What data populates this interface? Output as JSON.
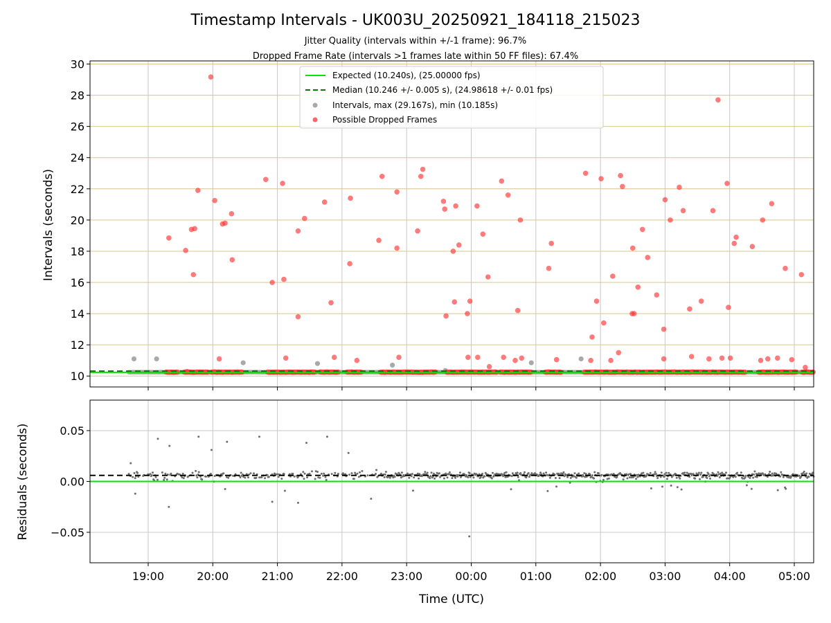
{
  "title": "Timestamp Intervals - UK003U_20250921_184118_215023",
  "subtitle1": "Jitter Quality (intervals within +/-1 frame): 96.7%",
  "subtitle2": "Dropped Frame Rate (intervals >1 frames late within 50 FF files): 67.4%",
  "colors": {
    "expected": "#00e600",
    "median": "#007a00",
    "intervals": "#9a9a9a",
    "dropped": "#ff3333",
    "residuals": "#6e6e6e",
    "hgrid_top": "#d9c48a",
    "grid": "#c8c8c8"
  },
  "chart_data": [
    {
      "type": "scatter",
      "panel": "intervals",
      "ylabel": "Intervals (seconds)",
      "xlabel": "",
      "xlim_hours": [
        18.1,
        29.3
      ],
      "ylim": [
        9.3,
        30.2
      ],
      "yticks": [
        10,
        12,
        14,
        16,
        18,
        20,
        22,
        24,
        26,
        28,
        30
      ],
      "ytick_labels": [
        "10",
        "12",
        "14",
        "16",
        "18",
        "20",
        "22",
        "24",
        "26",
        "28",
        "30"
      ],
      "expected_value": 10.24,
      "median_value": 10.246,
      "series_start_hours": 18.7,
      "legend": [
        {
          "kind": "line-solid",
          "label": "Expected (10.240s), (25.00000 fps)"
        },
        {
          "kind": "line-dashed",
          "label": "Median (10.246 +/- 0.005 s), (24.98618 +/- 0.01 fps)"
        },
        {
          "kind": "marker-gray",
          "label": "Intervals, max (29.167s), min (10.185s)"
        },
        {
          "kind": "marker-red",
          "label": "Possible Dropped Frames"
        }
      ],
      "gray_points": [
        {
          "x": 18.78,
          "y": 11.1
        },
        {
          "x": 19.13,
          "y": 11.1
        },
        {
          "x": 20.47,
          "y": 10.85
        },
        {
          "x": 21.62,
          "y": 10.8
        },
        {
          "x": 22.78,
          "y": 10.7
        },
        {
          "x": 24.93,
          "y": 10.85
        },
        {
          "x": 25.7,
          "y": 11.1
        },
        {
          "x": 19.6,
          "y": 10.3
        },
        {
          "x": 23.6,
          "y": 10.35
        }
      ],
      "dropped_points": [
        {
          "x": 19.32,
          "y": 18.85
        },
        {
          "x": 19.58,
          "y": 18.05
        },
        {
          "x": 19.67,
          "y": 19.4
        },
        {
          "x": 19.72,
          "y": 19.45
        },
        {
          "x": 19.7,
          "y": 16.5
        },
        {
          "x": 19.77,
          "y": 21.9
        },
        {
          "x": 19.97,
          "y": 29.17
        },
        {
          "x": 20.03,
          "y": 21.25
        },
        {
          "x": 20.1,
          "y": 11.1
        },
        {
          "x": 20.15,
          "y": 19.75
        },
        {
          "x": 20.19,
          "y": 19.8
        },
        {
          "x": 20.29,
          "y": 20.4
        },
        {
          "x": 20.3,
          "y": 17.45
        },
        {
          "x": 20.82,
          "y": 22.6
        },
        {
          "x": 20.92,
          "y": 16.0
        },
        {
          "x": 21.08,
          "y": 22.35
        },
        {
          "x": 21.1,
          "y": 16.2
        },
        {
          "x": 21.13,
          "y": 11.15
        },
        {
          "x": 21.32,
          "y": 19.3
        },
        {
          "x": 21.32,
          "y": 13.8
        },
        {
          "x": 21.42,
          "y": 20.1
        },
        {
          "x": 21.73,
          "y": 21.15
        },
        {
          "x": 21.83,
          "y": 14.7
        },
        {
          "x": 21.88,
          "y": 11.2
        },
        {
          "x": 22.12,
          "y": 17.2
        },
        {
          "x": 22.13,
          "y": 21.4
        },
        {
          "x": 22.23,
          "y": 11.0
        },
        {
          "x": 22.57,
          "y": 18.7
        },
        {
          "x": 22.62,
          "y": 22.8
        },
        {
          "x": 22.85,
          "y": 21.8
        },
        {
          "x": 22.85,
          "y": 18.2
        },
        {
          "x": 22.88,
          "y": 11.2
        },
        {
          "x": 23.17,
          "y": 19.3
        },
        {
          "x": 23.22,
          "y": 22.8
        },
        {
          "x": 23.25,
          "y": 23.25
        },
        {
          "x": 23.57,
          "y": 21.2
        },
        {
          "x": 23.59,
          "y": 20.7
        },
        {
          "x": 23.61,
          "y": 13.85
        },
        {
          "x": 23.72,
          "y": 18.0
        },
        {
          "x": 23.74,
          "y": 14.75
        },
        {
          "x": 23.76,
          "y": 20.9
        },
        {
          "x": 23.81,
          "y": 18.4
        },
        {
          "x": 23.94,
          "y": 14.0
        },
        {
          "x": 23.95,
          "y": 11.2
        },
        {
          "x": 23.98,
          "y": 14.8
        },
        {
          "x": 24.09,
          "y": 20.9
        },
        {
          "x": 24.1,
          "y": 11.2
        },
        {
          "x": 24.18,
          "y": 19.1
        },
        {
          "x": 24.26,
          "y": 16.35
        },
        {
          "x": 24.28,
          "y": 10.6
        },
        {
          "x": 24.47,
          "y": 22.5
        },
        {
          "x": 24.5,
          "y": 11.2
        },
        {
          "x": 24.57,
          "y": 21.6
        },
        {
          "x": 24.68,
          "y": 11.0
        },
        {
          "x": 24.72,
          "y": 14.2
        },
        {
          "x": 24.76,
          "y": 20.0
        },
        {
          "x": 24.78,
          "y": 11.15
        },
        {
          "x": 25.2,
          "y": 16.9
        },
        {
          "x": 25.24,
          "y": 18.5
        },
        {
          "x": 25.32,
          "y": 11.05
        },
        {
          "x": 25.77,
          "y": 23.0
        },
        {
          "x": 25.85,
          "y": 11.0
        },
        {
          "x": 25.87,
          "y": 12.5
        },
        {
          "x": 25.94,
          "y": 14.8
        },
        {
          "x": 26.01,
          "y": 22.65
        },
        {
          "x": 26.05,
          "y": 13.4
        },
        {
          "x": 26.16,
          "y": 11.0
        },
        {
          "x": 26.19,
          "y": 16.4
        },
        {
          "x": 26.28,
          "y": 11.5
        },
        {
          "x": 26.31,
          "y": 22.85
        },
        {
          "x": 26.34,
          "y": 22.15
        },
        {
          "x": 26.49,
          "y": 14.0
        },
        {
          "x": 26.52,
          "y": 14.0
        },
        {
          "x": 26.5,
          "y": 18.2
        },
        {
          "x": 26.58,
          "y": 15.7
        },
        {
          "x": 26.65,
          "y": 19.4
        },
        {
          "x": 26.73,
          "y": 17.6
        },
        {
          "x": 26.87,
          "y": 15.2
        },
        {
          "x": 26.98,
          "y": 11.1
        },
        {
          "x": 26.98,
          "y": 13.0
        },
        {
          "x": 27.0,
          "y": 21.3
        },
        {
          "x": 27.08,
          "y": 20.0
        },
        {
          "x": 27.22,
          "y": 22.1
        },
        {
          "x": 27.28,
          "y": 20.6
        },
        {
          "x": 27.38,
          "y": 14.3
        },
        {
          "x": 27.41,
          "y": 11.25
        },
        {
          "x": 27.56,
          "y": 14.8
        },
        {
          "x": 27.68,
          "y": 11.1
        },
        {
          "x": 27.74,
          "y": 20.6
        },
        {
          "x": 27.82,
          "y": 27.7
        },
        {
          "x": 27.88,
          "y": 11.15
        },
        {
          "x": 27.96,
          "y": 22.35
        },
        {
          "x": 27.98,
          "y": 14.4
        },
        {
          "x": 28.01,
          "y": 11.15
        },
        {
          "x": 28.07,
          "y": 18.5
        },
        {
          "x": 28.1,
          "y": 18.9
        },
        {
          "x": 28.35,
          "y": 18.3
        },
        {
          "x": 28.48,
          "y": 11.0
        },
        {
          "x": 28.51,
          "y": 20.0
        },
        {
          "x": 28.59,
          "y": 11.1
        },
        {
          "x": 28.65,
          "y": 21.05
        },
        {
          "x": 28.74,
          "y": 11.15
        },
        {
          "x": 28.86,
          "y": 16.9
        },
        {
          "x": 28.96,
          "y": 11.05
        },
        {
          "x": 29.11,
          "y": 16.5
        },
        {
          "x": 29.17,
          "y": 10.55
        }
      ],
      "red_baseline_segments": [
        [
          19.28,
          19.46
        ],
        [
          19.56,
          19.93
        ],
        [
          19.98,
          20.46
        ],
        [
          20.85,
          21.28
        ],
        [
          21.3,
          21.6
        ],
        [
          21.66,
          21.96
        ],
        [
          22.08,
          22.3
        ],
        [
          22.6,
          22.88
        ],
        [
          22.9,
          23.12
        ],
        [
          23.14,
          23.45
        ],
        [
          23.62,
          24.4
        ],
        [
          24.45,
          24.93
        ],
        [
          25.15,
          25.4
        ],
        [
          25.75,
          28.25
        ],
        [
          28.45,
          29.05
        ],
        [
          29.12,
          29.3
        ]
      ]
    },
    {
      "type": "scatter",
      "panel": "residuals",
      "ylabel": "Residuals (seconds)",
      "xlabel": "Time (UTC)",
      "xlim_hours": [
        18.1,
        29.3
      ],
      "ylim": [
        -0.08,
        0.08
      ],
      "yticks": [
        -0.05,
        0.0,
        0.05
      ],
      "ytick_labels": [
        "−0.05",
        "0.00",
        "0.05"
      ],
      "expected_value": 0.0,
      "median_value": 0.006,
      "xticks_hours": [
        19,
        20,
        21,
        22,
        23,
        24,
        25,
        26,
        27,
        28,
        29
      ],
      "xtick_labels": [
        "19:00",
        "20:00",
        "21:00",
        "22:00",
        "23:00",
        "00:00",
        "01:00",
        "02:00",
        "03:00",
        "04:00",
        "05:00"
      ],
      "outliers": [
        {
          "x": 19.15,
          "y": 0.042
        },
        {
          "x": 19.33,
          "y": 0.035
        },
        {
          "x": 19.78,
          "y": 0.044
        },
        {
          "x": 20.22,
          "y": 0.039
        },
        {
          "x": 19.98,
          "y": 0.031
        },
        {
          "x": 20.72,
          "y": 0.044
        },
        {
          "x": 21.45,
          "y": 0.038
        },
        {
          "x": 21.77,
          "y": 0.044
        },
        {
          "x": 22.1,
          "y": 0.028
        },
        {
          "x": 18.73,
          "y": 0.018
        },
        {
          "x": 19.32,
          "y": -0.025
        },
        {
          "x": 21.32,
          "y": -0.021
        },
        {
          "x": 20.92,
          "y": -0.02
        },
        {
          "x": 23.97,
          "y": -0.054
        },
        {
          "x": 18.8,
          "y": -0.012
        },
        {
          "x": 22.45,
          "y": -0.017
        }
      ]
    }
  ],
  "random_seed": 42
}
